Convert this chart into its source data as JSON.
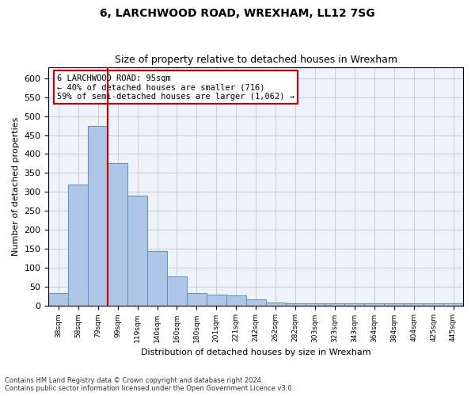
{
  "title1": "6, LARCHWOOD ROAD, WREXHAM, LL12 7SG",
  "title2": "Size of property relative to detached houses in Wrexham",
  "xlabel": "Distribution of detached houses by size in Wrexham",
  "ylabel": "Number of detached properties",
  "bar_values": [
    32,
    320,
    475,
    375,
    290,
    143,
    76,
    32,
    29,
    27,
    16,
    8,
    6,
    5,
    5,
    5,
    5,
    5,
    5,
    5,
    5
  ],
  "bar_labels": [
    "38sqm",
    "58sqm",
    "79sqm",
    "99sqm",
    "119sqm",
    "140sqm",
    "160sqm",
    "180sqm",
    "201sqm",
    "221sqm",
    "242sqm",
    "262sqm",
    "282sqm",
    "303sqm",
    "323sqm",
    "343sqm",
    "364sqm",
    "384sqm",
    "404sqm",
    "425sqm",
    "445sqm"
  ],
  "bar_color": "#aec6e8",
  "bar_edge_color": "#5a8fc4",
  "property_size_bin": 2,
  "annotation_text_line1": "6 LARCHWOOD ROAD: 95sqm",
  "annotation_text_line2": "← 40% of detached houses are smaller (716)",
  "annotation_text_line3": "59% of semi-detached houses are larger (1,062) →",
  "annotation_box_color": "#ffffff",
  "annotation_box_edge": "#cc0000",
  "red_line_color": "#cc0000",
  "grid_color": "#cccccc",
  "background_color": "#eef2fa",
  "footer_text": "Contains HM Land Registry data © Crown copyright and database right 2024.\nContains public sector information licensed under the Open Government Licence v3.0.",
  "ylim": [
    0,
    630
  ],
  "yticks": [
    0,
    50,
    100,
    150,
    200,
    250,
    300,
    350,
    400,
    450,
    500,
    550,
    600
  ],
  "figsize": [
    6.0,
    5.0
  ],
  "dpi": 100
}
